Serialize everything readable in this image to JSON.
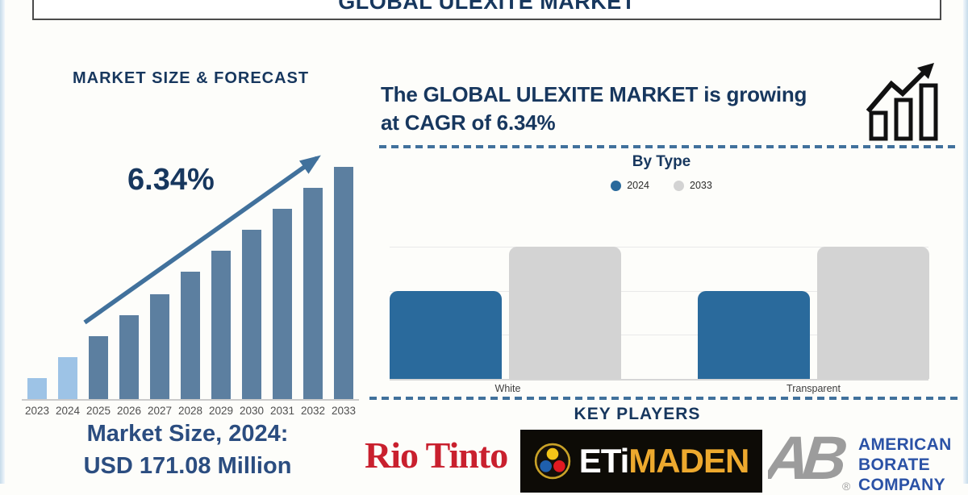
{
  "title": "GLOBAL ULEXITE MARKET",
  "left_panel": {
    "section_title": "MARKET SIZE & FORECAST",
    "cagr_annotation": "6.34%",
    "market_size_line1": "Market Size, 2024:",
    "market_size_line2": "USD 171.08 Million"
  },
  "right_panel": {
    "headline_line1": "The GLOBAL ULEXITE MARKET is growing",
    "headline_line2": "at CAGR of 6.34%",
    "section_by_type": "By Type",
    "key_players_title": "KEY PLAYERS"
  },
  "key_players": {
    "rio_tinto": "Rio Tinto",
    "etimaden_part1": "ETi",
    "etimaden_part2": "MADEN",
    "abc_monogram": "AB",
    "abc_reg": "®",
    "abc_line1": "AMERICAN",
    "abc_line2": "BORATE",
    "abc_line3": "COMPANY"
  },
  "chart_data": [
    {
      "type": "bar",
      "title": "MARKET SIZE & FORECAST",
      "categories": [
        "2023",
        "2024",
        "2025",
        "2026",
        "2027",
        "2028",
        "2029",
        "2030",
        "2031",
        "2032",
        "2033"
      ],
      "relative_heights_pct": [
        9,
        18,
        27,
        36,
        45,
        55,
        64,
        73,
        82,
        91,
        100
      ],
      "annotation": "6.34%",
      "stated_value": "Market Size, 2024: USD 171.08 Million",
      "historical_bar_count": 2,
      "bar_colors": {
        "historical": "#9DC3E6",
        "forecast": "#5C7FA0"
      },
      "xlabel": "",
      "ylabel": "",
      "grid": false,
      "y_axis_labels": false
    },
    {
      "type": "bar",
      "title": "By Type",
      "categories": [
        "White",
        "Transparent"
      ],
      "series": [
        {
          "name": "2024",
          "color": "#2A6A9C",
          "values": [
            2,
            2
          ]
        },
        {
          "name": "2033",
          "color": "#D3D3D3",
          "values": [
            3,
            3
          ]
        }
      ],
      "y_max": 3,
      "grid": true,
      "legend_position": "top",
      "y_axis_labels": false
    }
  ],
  "colors": {
    "navy": "#17375E",
    "market_size_text": "#2B4D80",
    "arrow_dash_steel": "#41719C",
    "bar_light_blue": "#9DC3E6",
    "bar_steel_blue": "#5C7FA0",
    "bar_2024_blue": "#2A6A9C",
    "bar_2033_gray": "#D3D3D3",
    "rio_red": "#C9202E",
    "etimaden_gold": "#EDA92E",
    "abc_blue": "#2B52A6",
    "abc_gray": "#9C9C9C"
  }
}
